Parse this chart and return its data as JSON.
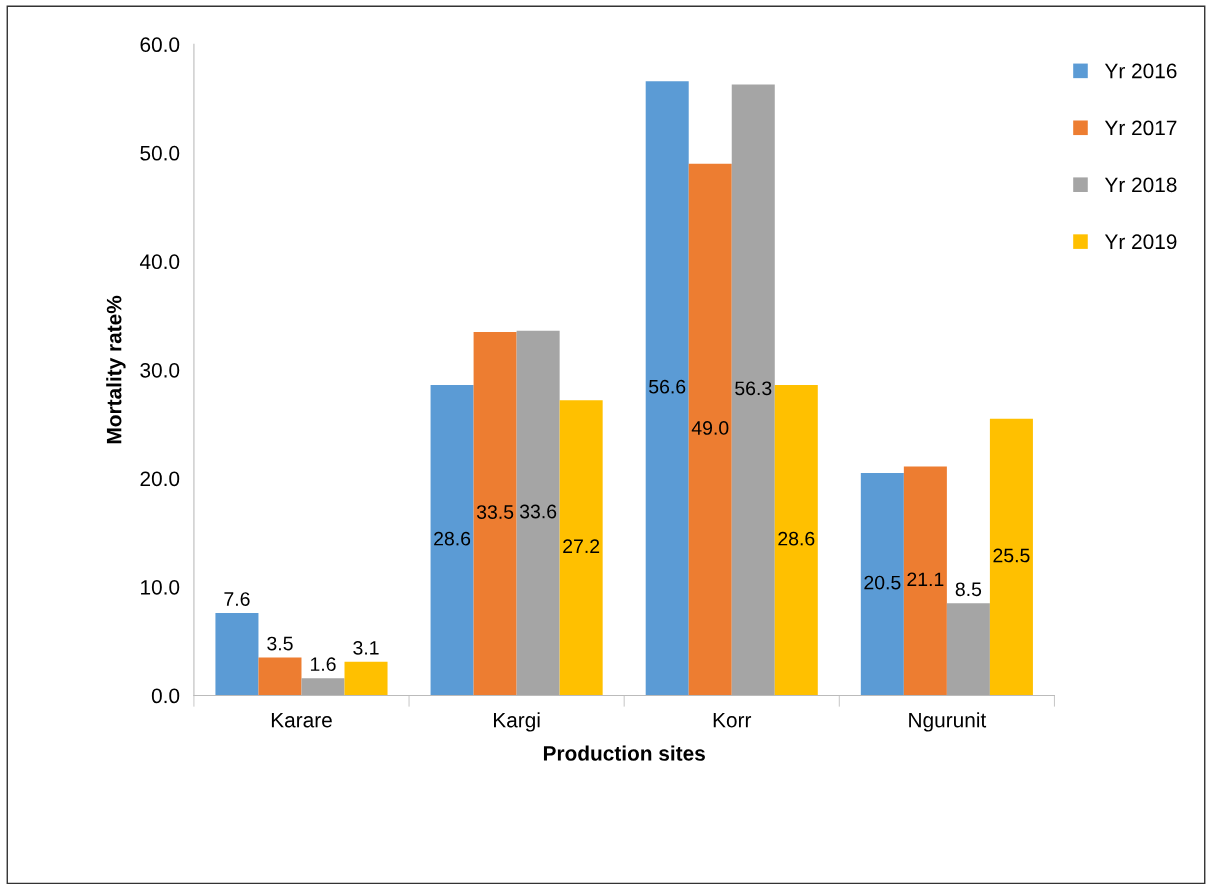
{
  "chart_data": {
    "type": "bar",
    "xlabel": "Production sites",
    "ylabel": "Mortality rate%",
    "categories": [
      "Karare",
      "Kargi",
      "Korr",
      "Ngurunit"
    ],
    "series": [
      {
        "name": "Yr 2016",
        "color": "#5b9bd5",
        "values": [
          7.6,
          28.6,
          56.6,
          20.5
        ],
        "value_labels": [
          "7.6",
          "28.6",
          "56.6",
          "20.5"
        ]
      },
      {
        "name": "Yr 2017",
        "color": "#ed7d31",
        "values": [
          3.5,
          33.5,
          49.0,
          21.1
        ],
        "value_labels": [
          "3.5",
          "33.5",
          "49.0",
          "21.1"
        ]
      },
      {
        "name": "Yr 2018",
        "color": "#a5a5a5",
        "values": [
          1.6,
          33.6,
          56.3,
          8.5
        ],
        "value_labels": [
          "1.6",
          "33.6",
          "56.3",
          "8.5"
        ]
      },
      {
        "name": "Yr 2019",
        "color": "#ffc000",
        "values": [
          3.1,
          27.2,
          28.6,
          25.5
        ],
        "value_labels": [
          "3.1",
          "27.2",
          "28.6",
          "25.5"
        ]
      }
    ],
    "ylim": [
      0,
      60
    ],
    "yticks": [
      {
        "value": 0,
        "label": "0.0"
      },
      {
        "value": 10,
        "label": "10.0"
      },
      {
        "value": 20,
        "label": "20.0"
      },
      {
        "value": 30,
        "label": "30.0"
      },
      {
        "value": 40,
        "label": "40.0"
      },
      {
        "value": 50,
        "label": "50.0"
      },
      {
        "value": 60,
        "label": "60.0"
      }
    ],
    "legend": "right",
    "grid": false
  }
}
